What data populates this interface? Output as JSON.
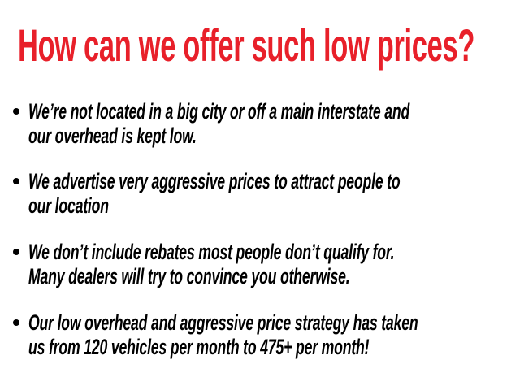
{
  "title": "How can we offer such low prices?",
  "colors": {
    "title": "#e8202a",
    "text": "#000000"
  },
  "bullets": [
    {
      "lines": [
        "We’re not located in a big city or off a main interstate and",
        "our overhead is kept low."
      ]
    },
    {
      "lines": [
        "We advertise very aggressive prices to attract people to",
        "our location"
      ]
    },
    {
      "lines": [
        "We don’t include rebates most people don’t qualify for.",
        "Many dealers will try to convince you otherwise."
      ]
    },
    {
      "lines": [
        "Our low overhead and aggressive price strategy has taken",
        "us from 120 vehicles per month to 475+ per month!"
      ]
    }
  ]
}
